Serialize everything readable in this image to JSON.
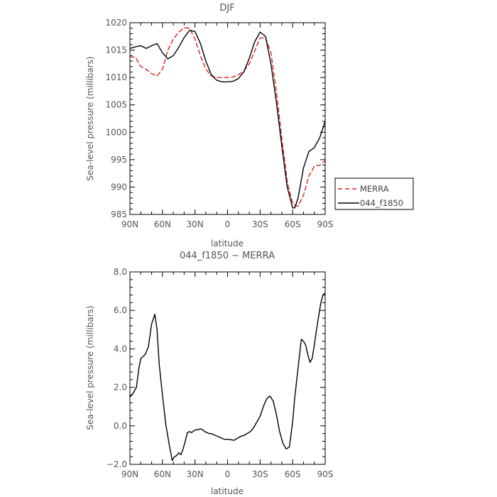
{
  "chart_data": [
    {
      "type": "line",
      "title": "DJF",
      "xlabel": "latitude",
      "ylabel": "Sea-level pressure (millibars)",
      "x_ticks": [
        "90N",
        "60N",
        "30N",
        "0",
        "30S",
        "60S",
        "90S"
      ],
      "y_ticks": [
        "985",
        "990",
        "995",
        "1000",
        "1005",
        "1010",
        "1015",
        "1020"
      ],
      "xlim": [
        90,
        -90
      ],
      "ylim": [
        985,
        1020
      ],
      "grid": false,
      "legend": "right",
      "series": [
        {
          "name": "MERRA",
          "color": "#dd2222",
          "style": "dashed",
          "x": [
            90,
            85,
            80,
            75,
            70,
            65,
            60,
            55,
            50,
            45,
            40,
            35,
            30,
            25,
            20,
            15,
            10,
            5,
            0,
            -5,
            -10,
            -15,
            -20,
            -25,
            -30,
            -35,
            -40,
            -45,
            -50,
            -55,
            -60,
            -62,
            -65,
            -70,
            -75,
            -80,
            -85,
            -90
          ],
          "y": [
            1013.8,
            1013.7,
            1012.0,
            1011.5,
            1010.7,
            1010.3,
            1011.5,
            1015.0,
            1017.0,
            1018.3,
            1019.1,
            1019.0,
            1017.0,
            1014.0,
            1011.5,
            1010.3,
            1010.0,
            1010.0,
            1010.0,
            1010.1,
            1010.5,
            1011.2,
            1012.5,
            1014.8,
            1017.2,
            1017.3,
            1014.5,
            1007.5,
            999.0,
            991.0,
            987.0,
            986.7,
            986.5,
            988.5,
            992.0,
            993.8,
            994.0,
            994.8
          ]
        },
        {
          "name": "044_f1850",
          "color": "#000000",
          "style": "solid",
          "x": [
            90,
            85,
            80,
            75,
            70,
            65,
            60,
            55,
            50,
            45,
            40,
            35,
            30,
            25,
            20,
            15,
            10,
            5,
            0,
            -5,
            -10,
            -15,
            -20,
            -25,
            -30,
            -35,
            -40,
            -45,
            -50,
            -55,
            -60,
            -62,
            -65,
            -70,
            -75,
            -80,
            -85,
            -90
          ],
          "y": [
            1015.3,
            1015.6,
            1015.8,
            1015.3,
            1015.8,
            1016.2,
            1014.5,
            1013.4,
            1014.0,
            1015.5,
            1017.3,
            1018.6,
            1018.4,
            1016.2,
            1013.0,
            1010.5,
            1009.5,
            1009.2,
            1009.2,
            1009.3,
            1009.8,
            1011.0,
            1013.5,
            1016.5,
            1018.3,
            1017.5,
            1012.5,
            1005.5,
            997.5,
            990.0,
            986.2,
            986.2,
            988.0,
            993.5,
            996.5,
            997.2,
            999.0,
            1002.0
          ]
        }
      ]
    },
    {
      "type": "line",
      "title": "044_f1850 − MERRA",
      "xlabel": "latitude",
      "ylabel": "Sea-level pressure (millibars)",
      "x_ticks": [
        "90N",
        "60N",
        "30N",
        "0",
        "30S",
        "60S",
        "90S"
      ],
      "y_ticks": [
        "−2.0",
        "0.0",
        "2.0",
        "4.0",
        "6.0",
        "8.0"
      ],
      "xlim": [
        90,
        -90
      ],
      "ylim": [
        -2,
        8
      ],
      "grid": false,
      "series": [
        {
          "color": "#000000",
          "style": "solid",
          "x": [
            90,
            87,
            84,
            82,
            80,
            78,
            76,
            73,
            70,
            67,
            65,
            63,
            60,
            57,
            54,
            51,
            49,
            47,
            45,
            43,
            41,
            39,
            37,
            35,
            33,
            31,
            29,
            27,
            25,
            23,
            21,
            19,
            17,
            15,
            13,
            11,
            9,
            7,
            5,
            3,
            0,
            -3,
            -6,
            -9,
            -12,
            -15,
            -18,
            -21,
            -24,
            -27,
            -30,
            -33,
            -36,
            -39,
            -42,
            -45,
            -48,
            -51,
            -54,
            -57,
            -60,
            -62,
            -65,
            -68,
            -70,
            -72,
            -74,
            -76,
            -78,
            -80,
            -82,
            -84,
            -86,
            -88,
            -90
          ],
          "y": [
            1.5,
            1.7,
            2.0,
            2.9,
            3.5,
            3.6,
            3.7,
            4.1,
            5.3,
            5.8,
            5.0,
            3.2,
            1.6,
            0.1,
            -0.9,
            -1.8,
            -1.6,
            -1.55,
            -1.4,
            -1.5,
            -1.2,
            -0.8,
            -0.35,
            -0.3,
            -0.35,
            -0.25,
            -0.2,
            -0.2,
            -0.15,
            -0.2,
            -0.3,
            -0.35,
            -0.4,
            -0.4,
            -0.45,
            -0.5,
            -0.55,
            -0.6,
            -0.65,
            -0.7,
            -0.7,
            -0.72,
            -0.75,
            -0.65,
            -0.55,
            -0.5,
            -0.4,
            -0.3,
            -0.1,
            0.2,
            0.5,
            1.0,
            1.4,
            1.55,
            1.3,
            0.6,
            -0.3,
            -0.9,
            -1.2,
            -1.1,
            0.2,
            1.5,
            3.0,
            4.5,
            4.4,
            4.2,
            3.7,
            3.3,
            3.5,
            4.2,
            5.0,
            5.7,
            6.4,
            6.8,
            6.9
          ]
        }
      ]
    }
  ]
}
